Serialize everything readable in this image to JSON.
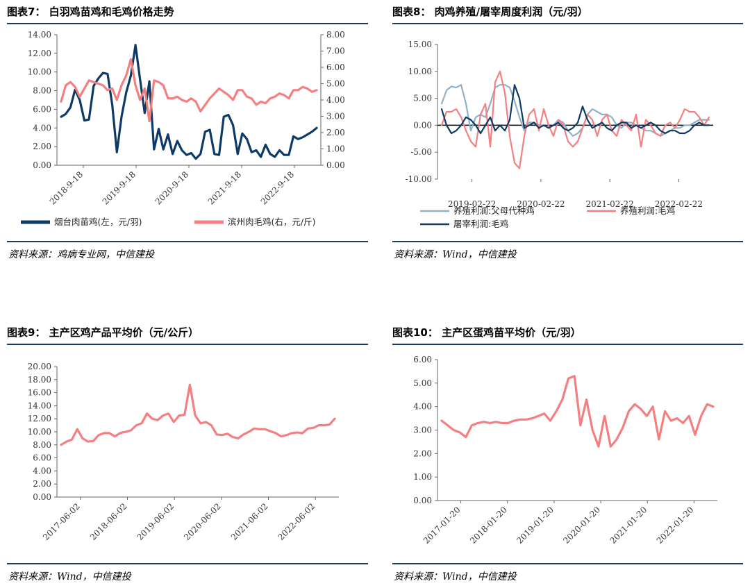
{
  "colors": {
    "navy": "#0d3a66",
    "pink": "#f47f81",
    "lightblue": "#8fb1c8",
    "rule": "#1b3a63"
  },
  "chart_data": [
    {
      "id": "c7",
      "type": "line",
      "title": "图表7：  白羽鸡苗鸡和毛鸡价格走势",
      "source": "资料来源：鸡病专业网，中信建投",
      "x_labels": [
        "2018-9-18",
        "2019-9-18",
        "2020-9-18",
        "2021-9-18",
        "2022-9-18"
      ],
      "ylim_left": [
        0,
        14
      ],
      "yticks_left": [
        "0.00",
        "2.00",
        "4.00",
        "6.00",
        "8.00",
        "10.00",
        "12.00",
        "14.00"
      ],
      "ylim_right": [
        0,
        8
      ],
      "yticks_right": [
        "0.00",
        "1.00",
        "2.00",
        "3.00",
        "4.00",
        "5.00",
        "6.00",
        "7.00",
        "8.00"
      ],
      "legend_position": "bottom",
      "series": [
        {
          "name": "烟台肉苗鸡(左，元/羽)",
          "color": "#0d3a66",
          "axis": "left",
          "values": [
            5.2,
            5.5,
            6.2,
            8.1,
            7.0,
            4.8,
            4.9,
            8.5,
            9.3,
            9.9,
            9.8,
            6.5,
            1.4,
            5.2,
            7.8,
            9.6,
            12.9,
            9.2,
            5.6,
            9.0,
            1.7,
            3.9,
            1.7,
            3.3,
            1.2,
            2.6,
            1.6,
            1.1,
            1.3,
            0.7,
            1.2,
            3.6,
            3.8,
            1.2,
            1.1,
            5.2,
            5.4,
            4.3,
            1.2,
            3.4,
            2.8,
            1.4,
            1.6,
            0.9,
            2.2,
            1.2,
            0.9,
            1.6,
            1.1,
            1.1,
            3.1,
            2.8,
            3.0,
            3.3,
            3.6,
            4.0
          ]
        },
        {
          "name": "滨州肉毛鸡(右，元/斤)",
          "color": "#f47f81",
          "axis": "right",
          "values": [
            3.9,
            4.9,
            5.1,
            4.8,
            4.2,
            4.7,
            5.2,
            5.1,
            5.0,
            4.9,
            4.6,
            4.7,
            4.0,
            4.9,
            5.5,
            6.5,
            4.9,
            4.0,
            4.7,
            2.7,
            5.2,
            5.1,
            4.9,
            4.1,
            4.1,
            4.2,
            4.0,
            3.9,
            4.1,
            3.9,
            3.3,
            3.7,
            4.1,
            4.4,
            4.7,
            4.5,
            4.3,
            4.0,
            4.6,
            4.6,
            4.2,
            4.1,
            3.7,
            3.9,
            3.8,
            4.1,
            4.2,
            4.4,
            4.3,
            4.1,
            4.6,
            4.6,
            4.8,
            4.7,
            4.5,
            4.6
          ]
        }
      ]
    },
    {
      "id": "c8",
      "type": "line",
      "title": "图表8：  肉鸡养殖/屠宰周度利润（元/羽）",
      "source": "资料来源：Wind，中信建投",
      "x_labels": [
        "2019-02-22",
        "2020-02-22",
        "2021-02-22",
        "2022-02-22"
      ],
      "ylim": [
        -10,
        15
      ],
      "yticks": [
        "-10.00",
        "-5.00",
        "0.00",
        "5.00",
        "10.00",
        "15.00"
      ],
      "legend_position": "bottom",
      "series": [
        {
          "name": "养殖利润:父母代种鸡",
          "color": "#8fb1c8",
          "values": [
            4.0,
            6.5,
            7.2,
            7.0,
            7.5,
            4.0,
            -1.0,
            1.5,
            2.0,
            1.5,
            4.0,
            7.0,
            7.5,
            7.5,
            7.0,
            4.5,
            1.5,
            -1.0,
            0.5,
            0.5,
            0.0,
            0.0,
            -0.5,
            0.0,
            1.0,
            0.5,
            -1.0,
            -2.0,
            -1.5,
            -0.5,
            2.0,
            3.0,
            2.5,
            2.0,
            2.0,
            1.5,
            0.0,
            -0.5,
            0.5,
            0.5,
            0.0,
            -0.5,
            -1.0,
            -1.0,
            -1.5,
            -2.0,
            -1.5,
            -1.0,
            -0.5,
            -0.5,
            0.0,
            0.0,
            0.5,
            1.0,
            1.0,
            1.0
          ]
        },
        {
          "name": "养殖利润:毛鸡",
          "color": "#f47f81",
          "values": [
            0.0,
            2.5,
            2.5,
            3.0,
            1.5,
            -1.0,
            -3.0,
            -4.0,
            2.0,
            4.0,
            -4.0,
            8.0,
            10.0,
            6.0,
            -2.0,
            -7.0,
            -8.0,
            -2.0,
            2.0,
            3.0,
            -1.0,
            3.0,
            0.0,
            -2.0,
            1.0,
            0.0,
            -3.0,
            -4.0,
            -3.0,
            -0.5,
            2.0,
            1.0,
            -2.0,
            1.0,
            2.0,
            -1.0,
            -2.0,
            1.0,
            0.0,
            -1.0,
            2.0,
            -4.0,
            1.0,
            0.0,
            -1.5,
            -2.0,
            0.0,
            0.5,
            -0.5,
            1.0,
            3.0,
            2.5,
            2.5,
            1.5,
            0.0,
            1.5
          ]
        },
        {
          "name": "屠宰利润:毛鸡",
          "color": "#0d3a66",
          "values": [
            3.0,
            0.0,
            -1.5,
            -1.0,
            0.0,
            1.5,
            1.0,
            0.0,
            -1.5,
            0.0,
            1.5,
            -1.0,
            0.0,
            -1.0,
            1.0,
            7.5,
            5.0,
            -0.5,
            0.0,
            0.5,
            -0.5,
            0.0,
            -0.5,
            0.0,
            0.5,
            -0.5,
            -1.0,
            -0.5,
            0.5,
            3.5,
            1.0,
            -0.5,
            0.0,
            0.5,
            -0.5,
            -1.0,
            0.0,
            0.5,
            0.5,
            -0.5,
            0.0,
            -0.5,
            0.0,
            0.5,
            0.0,
            -1.0,
            -1.5,
            -1.0,
            -1.0,
            -1.5,
            -1.5,
            -1.0,
            0.0,
            0.5,
            0.0,
            0.0
          ]
        }
      ]
    },
    {
      "id": "c9",
      "type": "line",
      "title": "图表9：  主产区鸡产品平均价（元/公斤）",
      "source": "资料来源：Wind，中信建投",
      "x_labels": [
        "2017-06-02",
        "2018-06-02",
        "2019-06-02",
        "2020-06-02",
        "2021-06-02",
        "2022-06-02"
      ],
      "ylim": [
        0,
        20
      ],
      "yticks": [
        "0.00",
        "2.00",
        "4.00",
        "6.00",
        "8.00",
        "10.00",
        "12.00",
        "14.00",
        "16.00",
        "18.00",
        "20.00"
      ],
      "series": [
        {
          "name": "",
          "color": "#f47f81",
          "values": [
            8.0,
            8.5,
            8.8,
            10.4,
            9.0,
            8.5,
            8.6,
            9.5,
            9.8,
            9.8,
            9.3,
            9.8,
            10.0,
            10.2,
            11.0,
            11.3,
            12.8,
            12.0,
            11.8,
            12.5,
            12.8,
            11.5,
            12.5,
            12.6,
            17.2,
            12.5,
            11.3,
            11.5,
            11.0,
            9.6,
            9.5,
            9.7,
            9.2,
            9.0,
            9.6,
            10.0,
            10.5,
            10.4,
            10.4,
            10.1,
            9.8,
            9.3,
            9.5,
            9.8,
            9.9,
            9.8,
            10.5,
            10.6,
            11.0,
            11.0,
            11.1,
            12.0
          ]
        }
      ]
    },
    {
      "id": "c10",
      "type": "line",
      "title": "图表10：  主产区蛋鸡苗平均价（元/羽）",
      "source": "资料来源：Wind，中信建投",
      "x_labels": [
        "2017-01-20",
        "2018-01-20",
        "2019-01-20",
        "2020-01-20",
        "2021-01-20",
        "2022-01-20"
      ],
      "ylim": [
        0,
        6
      ],
      "yticks": [
        "0.00",
        "1.00",
        "2.00",
        "3.00",
        "4.00",
        "5.00",
        "6.00"
      ],
      "series": [
        {
          "name": "",
          "color": "#f47f81",
          "values": [
            3.4,
            3.2,
            3.0,
            2.9,
            2.7,
            3.2,
            3.3,
            3.35,
            3.3,
            3.35,
            3.3,
            3.3,
            3.4,
            3.45,
            3.45,
            3.5,
            3.6,
            3.7,
            3.4,
            3.8,
            4.3,
            5.2,
            5.3,
            3.2,
            4.3,
            3.0,
            2.3,
            3.6,
            2.3,
            2.6,
            3.1,
            3.8,
            4.1,
            3.9,
            3.6,
            4.0,
            2.6,
            3.8,
            3.4,
            3.5,
            3.3,
            3.6,
            2.8,
            3.6,
            4.1,
            4.0
          ]
        }
      ]
    }
  ]
}
